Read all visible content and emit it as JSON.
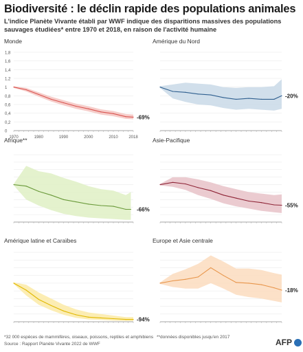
{
  "header": {
    "title": "Biodiversité : le déclin rapide des populations animales",
    "subtitle": "L'indice Planète Vivante établi par WWF indique des disparitions massives des populations sauvages étudiées* entre 1970 et 2018, en raison de l'activité humaine"
  },
  "footer": {
    "note1": "*32 000 espèces de mammifères, oiseaux, poissons, reptiles et amphibiens",
    "note2": "**données disponibles jusqu'en 2017",
    "source": "Source : Rapport Planète Vivante 2022 de WWF",
    "logo": "AFP"
  },
  "chart_data": [
    {
      "type": "line",
      "region": "Monde",
      "color": "#d9534f",
      "band_color": "#f4c4c1",
      "x": [
        1970,
        1975,
        1980,
        1985,
        1990,
        1995,
        2000,
        2005,
        2010,
        2015,
        2018
      ],
      "values": [
        1.0,
        0.94,
        0.83,
        0.72,
        0.64,
        0.56,
        0.5,
        0.43,
        0.39,
        0.32,
        0.31
      ],
      "lower": [
        0.98,
        0.9,
        0.78,
        0.67,
        0.58,
        0.5,
        0.44,
        0.37,
        0.33,
        0.27,
        0.26
      ],
      "upper": [
        1.02,
        0.98,
        0.88,
        0.78,
        0.7,
        0.62,
        0.56,
        0.49,
        0.45,
        0.38,
        0.37
      ],
      "ylim": [
        0,
        1.8
      ],
      "yticks": [
        "0",
        "0,2",
        "0,4",
        "0,6",
        "0,8",
        "1",
        "1,2",
        "1,4",
        "1,6",
        "1,8"
      ],
      "xticks": [
        "1970",
        "1980",
        "1990",
        "2000",
        "2010",
        "2018"
      ],
      "end_label": "-69%"
    },
    {
      "type": "line",
      "region": "Amérique du Nord",
      "color": "#2f5f8f",
      "band_color": "#c9d9e8",
      "x": [
        1970,
        1975,
        1980,
        1985,
        1990,
        1995,
        2000,
        2005,
        2010,
        2015,
        2018
      ],
      "values": [
        1.0,
        0.9,
        0.88,
        0.84,
        0.82,
        0.76,
        0.72,
        0.74,
        0.72,
        0.72,
        0.8
      ],
      "lower": [
        0.98,
        0.74,
        0.66,
        0.6,
        0.58,
        0.52,
        0.48,
        0.5,
        0.48,
        0.46,
        0.5
      ],
      "upper": [
        1.02,
        1.06,
        1.1,
        1.08,
        1.06,
        1.0,
        0.98,
        1.0,
        1.0,
        1.02,
        1.18
      ],
      "ylim": [
        0,
        1.8
      ],
      "end_label": "-20%"
    },
    {
      "type": "line",
      "region": "Afrique**",
      "color": "#6a9a3a",
      "band_color": "#dff0c4",
      "x": [
        1970,
        1975,
        1980,
        1985,
        1990,
        1995,
        2000,
        2005,
        2010,
        2015,
        2017
      ],
      "values": [
        1.0,
        0.96,
        0.82,
        0.72,
        0.6,
        0.54,
        0.48,
        0.44,
        0.42,
        0.34,
        0.34
      ],
      "lower": [
        0.98,
        0.6,
        0.44,
        0.32,
        0.22,
        0.16,
        0.12,
        0.1,
        0.08,
        0.06,
        0.06
      ],
      "upper": [
        1.02,
        1.5,
        1.36,
        1.3,
        1.18,
        1.08,
        0.96,
        0.88,
        0.84,
        0.72,
        0.8
      ],
      "ylim": [
        0,
        1.8
      ],
      "end_label": "-66%"
    },
    {
      "type": "line",
      "region": "Asie-Pacifique",
      "color": "#8e2436",
      "band_color": "#e7c2c8",
      "x": [
        1970,
        1975,
        1980,
        1985,
        1990,
        1995,
        2000,
        2005,
        2010,
        2015,
        2018
      ],
      "values": [
        1.0,
        1.06,
        1.02,
        0.92,
        0.84,
        0.72,
        0.64,
        0.56,
        0.52,
        0.46,
        0.45
      ],
      "lower": [
        0.98,
        0.94,
        0.86,
        0.72,
        0.62,
        0.5,
        0.42,
        0.36,
        0.3,
        0.26,
        0.24
      ],
      "upper": [
        1.02,
        1.2,
        1.2,
        1.14,
        1.06,
        0.96,
        0.88,
        0.8,
        0.76,
        0.72,
        0.74
      ],
      "ylim": [
        0,
        1.8
      ],
      "end_label": "-55%"
    },
    {
      "type": "line",
      "region": "Amérique latine et Caraïbes",
      "color": "#e0b800",
      "band_color": "#fbeaa6",
      "x": [
        1970,
        1975,
        1980,
        1985,
        1990,
        1995,
        2000,
        2005,
        2010,
        2015,
        2018
      ],
      "values": [
        1.0,
        0.82,
        0.58,
        0.42,
        0.28,
        0.18,
        0.12,
        0.1,
        0.08,
        0.06,
        0.06
      ],
      "lower": [
        0.98,
        0.68,
        0.44,
        0.3,
        0.18,
        0.1,
        0.06,
        0.05,
        0.03,
        0.02,
        0.02
      ],
      "upper": [
        1.02,
        0.96,
        0.76,
        0.6,
        0.44,
        0.32,
        0.24,
        0.2,
        0.16,
        0.12,
        0.12
      ],
      "ylim": [
        0,
        1.8
      ],
      "end_label": "-94%"
    },
    {
      "type": "line",
      "region": "Europe et Asie centrale",
      "color": "#e8954a",
      "band_color": "#fbdcbe",
      "x": [
        1970,
        1975,
        1980,
        1985,
        1990,
        1995,
        2000,
        2005,
        2010,
        2015,
        2018
      ],
      "values": [
        1.0,
        1.06,
        1.1,
        1.16,
        1.4,
        1.2,
        1.02,
        1.0,
        0.96,
        0.88,
        0.82
      ],
      "lower": [
        0.98,
        0.9,
        0.86,
        0.86,
        1.0,
        0.86,
        0.7,
        0.64,
        0.6,
        0.54,
        0.5
      ],
      "upper": [
        1.02,
        1.24,
        1.36,
        1.5,
        1.72,
        1.56,
        1.38,
        1.38,
        1.34,
        1.26,
        1.22
      ],
      "ylim": [
        0,
        1.8
      ],
      "end_label": "-18%"
    }
  ]
}
